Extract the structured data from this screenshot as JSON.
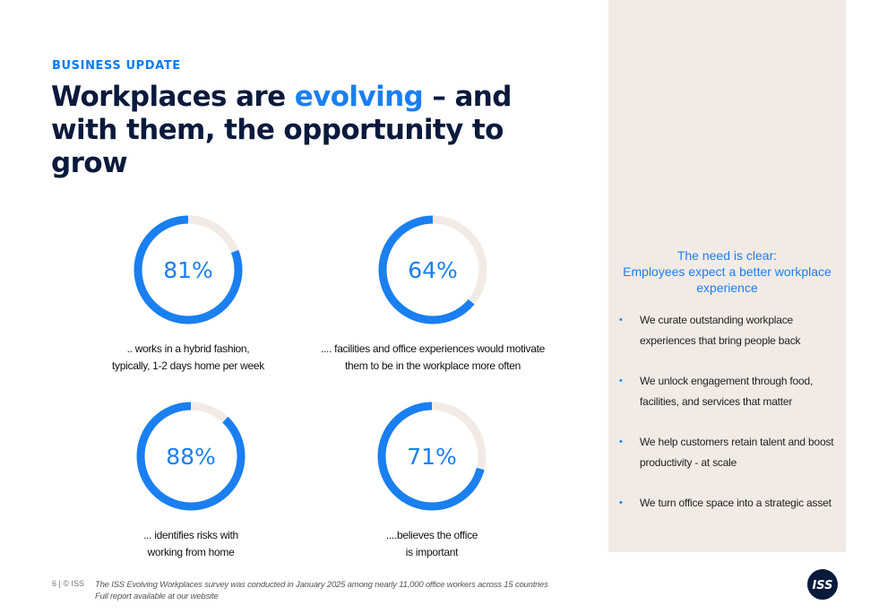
{
  "header": {
    "eyebrow": "BUSINESS UPDATE",
    "title_part1": "Workplaces are ",
    "title_highlight": "evolving",
    "title_part2": " – and with them, the opportunity to grow"
  },
  "stats": [
    {
      "percent_label": "81%",
      "value": 0.81,
      "caption_line1": ".. works in a hybrid fashion,",
      "caption_line2": "typically, 1-2 days home per week"
    },
    {
      "percent_label": "64%",
      "value": 0.64,
      "caption_line1": ".... facilities and office experiences would motivate",
      "caption_line2": "them to be in the workplace more often"
    },
    {
      "percent_label": "88%",
      "value": 0.88,
      "caption_line1": "... identifies risks with",
      "caption_line2": "working from home"
    },
    {
      "percent_label": "71%",
      "value": 0.71,
      "caption_line1": "....believes the office",
      "caption_line2": "is important"
    }
  ],
  "panel": {
    "heading_line1": "The need is clear:",
    "heading_line2": "Employees expect a better workplace",
    "heading_line3": "experience",
    "bullets": [
      "We curate outstanding workplace experiences that bring people back",
      "We unlock engagement through food, facilities, and services that matter",
      "We help customers retain talent and boost productivity - at scale",
      "We turn office space into a strategic asset"
    ]
  },
  "footer": {
    "page": "6 | © ISS",
    "note_line1_em": "The ISS Evolving Workplaces survey",
    "note_line1_rest": " was conducted in January 2025 among nearly 11,000 office workers across 15 countries",
    "note_line2": "Full report available at our website"
  },
  "logo_text": "ISS",
  "colors": {
    "accent": "#1a7ff0",
    "track": "#f2ebe5",
    "navy": "#0a1a3c",
    "panel": "#f2ebe5"
  }
}
